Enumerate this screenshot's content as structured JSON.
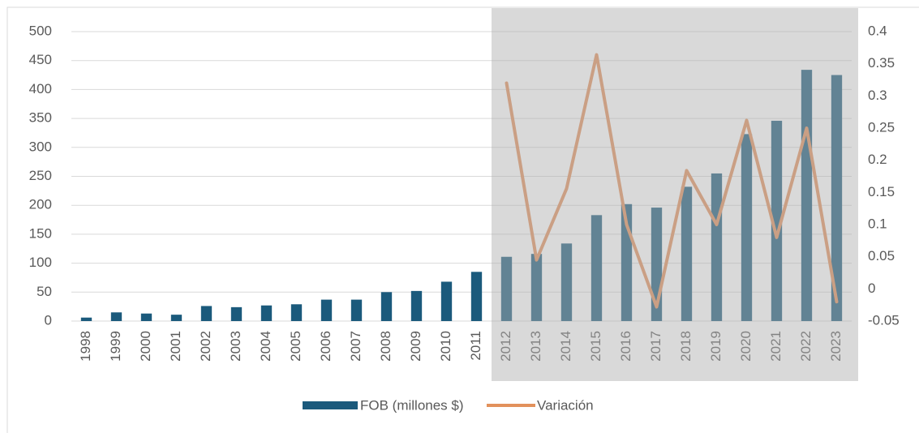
{
  "chart_data": {
    "type": "bar-line",
    "categories": [
      "1998",
      "1999",
      "2000",
      "2001",
      "2002",
      "2003",
      "2004",
      "2005",
      "2006",
      "2007",
      "2008",
      "2009",
      "2010",
      "2011",
      "2012",
      "2013",
      "2014",
      "2015",
      "2016",
      "2017",
      "2018",
      "2019",
      "2020",
      "2021",
      "2022",
      "2023"
    ],
    "series": [
      {
        "name": "FOB (millones $)",
        "type": "bar",
        "color": "#1b5a7c",
        "values": [
          6,
          15,
          13,
          11,
          26,
          24,
          27,
          29,
          37,
          37,
          50,
          52,
          68,
          85,
          111,
          116,
          134,
          183,
          202,
          196,
          232,
          255,
          323,
          346,
          434,
          425
        ]
      },
      {
        "name": "Variación",
        "type": "line",
        "axis": "y2",
        "color": "#e2915c",
        "values": [
          null,
          null,
          null,
          null,
          null,
          null,
          null,
          null,
          null,
          null,
          null,
          null,
          null,
          null,
          0.32,
          0.045,
          0.156,
          0.364,
          0.1,
          -0.028,
          0.184,
          0.1,
          0.262,
          0.08,
          0.25,
          -0.02
        ]
      }
    ],
    "ylim": [
      0,
      500
    ],
    "yticks": [
      0,
      50,
      100,
      150,
      200,
      250,
      300,
      350,
      400,
      450,
      500
    ],
    "y2lim": [
      -0.05,
      0.4
    ],
    "y2ticks": [
      -0.05,
      0,
      0.05,
      0.1,
      0.15,
      0.2,
      0.25,
      0.3,
      0.35,
      0.4
    ],
    "grid": true,
    "legend": "bottom"
  }
}
